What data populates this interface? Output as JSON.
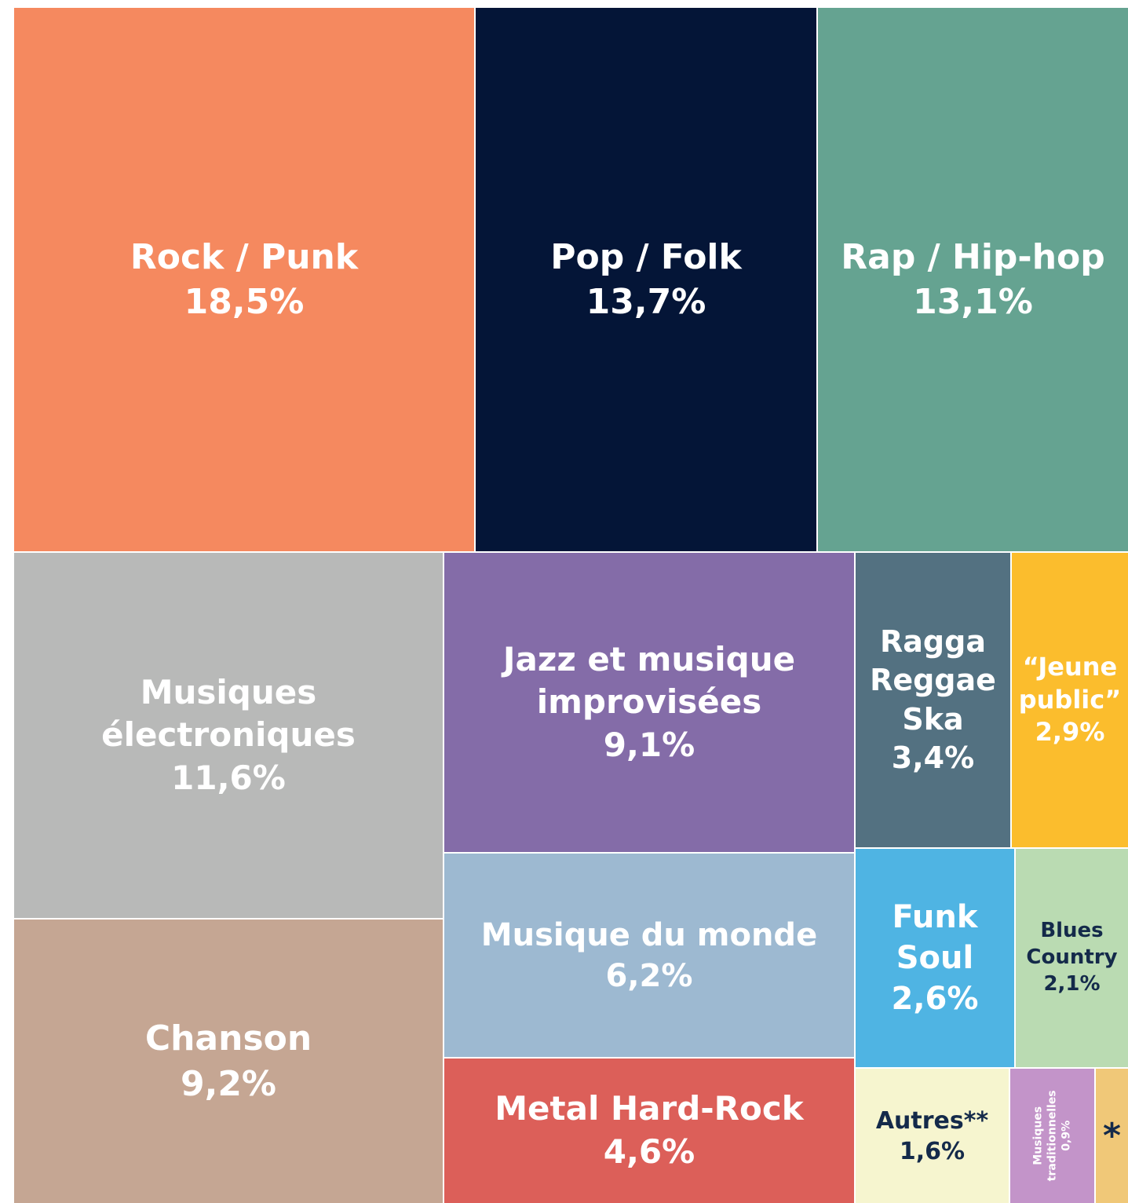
{
  "chart_data": {
    "type": "treemap",
    "categories": [
      "Rock / Punk",
      "Pop / Folk",
      "Rap / Hip-hop",
      "Musiques\nélectroniques",
      "Chanson",
      "Jazz et musique\nimprovisées",
      "Musique du monde",
      "Metal Hard-Rock",
      "Ragga\nReggae\nSka",
      "“Jeune\npublic”",
      "Funk\nSoul",
      "Blues\nCountry",
      "Autres**",
      "Musiques\ntraditionnelles",
      "*"
    ],
    "values": [
      18.5,
      13.7,
      13.1,
      11.6,
      9.2,
      9.1,
      6.2,
      4.6,
      3.4,
      2.9,
      2.6,
      2.1,
      1.6,
      0.9,
      0.5
    ],
    "value_labels": [
      "18,5%",
      "13,7%",
      "13,1%",
      "11,6%",
      "9,2%",
      "9,1%",
      "6,2%",
      "4,6%",
      "3,4%",
      "2,9%",
      "2,6%",
      "2,1%",
      "1,6%",
      "0,9%",
      null
    ],
    "colors": [
      "#f5895f",
      "#041537",
      "#65a391",
      "#b8b9b8",
      "#c5a693",
      "#846ca8",
      "#9db9d1",
      "#dc5f59",
      "#537181",
      "#fbbd2d",
      "#4fb4e3",
      "#badbb2",
      "#f6f5cf",
      "#c394c9",
      "#f0c878"
    ]
  }
}
